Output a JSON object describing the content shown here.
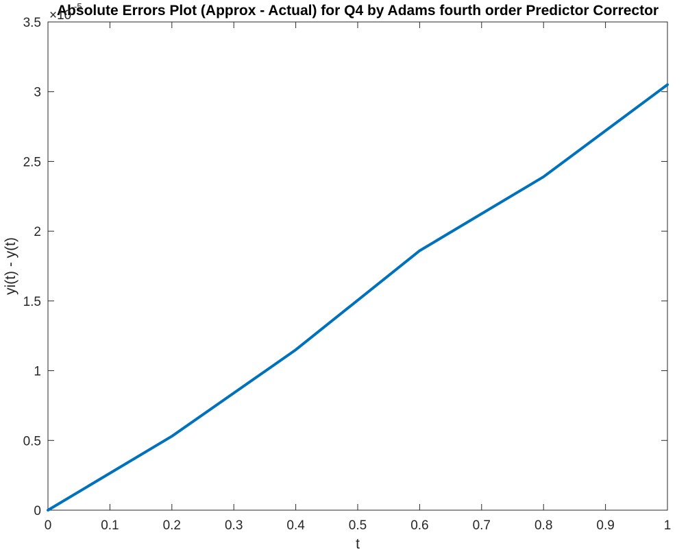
{
  "chart_data": {
    "type": "line",
    "title": "Absolute Errors Plot (Approx - Actual) for Q4 by Adams fourth order Predictor Corrector",
    "xlabel": "t",
    "ylabel": "yi(t) - y(t)",
    "y_exponent_label": "×10",
    "y_exponent_power": "-5",
    "xlim": [
      0,
      1
    ],
    "ylim": [
      0,
      3.5
    ],
    "x_ticks": [
      "0",
      "0.1",
      "0.2",
      "0.3",
      "0.4",
      "0.5",
      "0.6",
      "0.7",
      "0.8",
      "0.9",
      "1"
    ],
    "y_ticks": [
      "0",
      "0.5",
      "1",
      "1.5",
      "2",
      "2.5",
      "3",
      "3.5"
    ],
    "x_tick_values": [
      0,
      0.1,
      0.2,
      0.3,
      0.4,
      0.5,
      0.6,
      0.7,
      0.8,
      0.9,
      1
    ],
    "y_tick_values": [
      0,
      0.5,
      1,
      1.5,
      2,
      2.5,
      3,
      3.5
    ],
    "grid": false,
    "series": [
      {
        "color": "#0072bd",
        "x": [
          0,
          0.2,
          0.4,
          0.6,
          0.8,
          1.0
        ],
        "y": [
          0,
          0.53,
          1.15,
          1.86,
          2.39,
          3.05
        ]
      }
    ]
  }
}
